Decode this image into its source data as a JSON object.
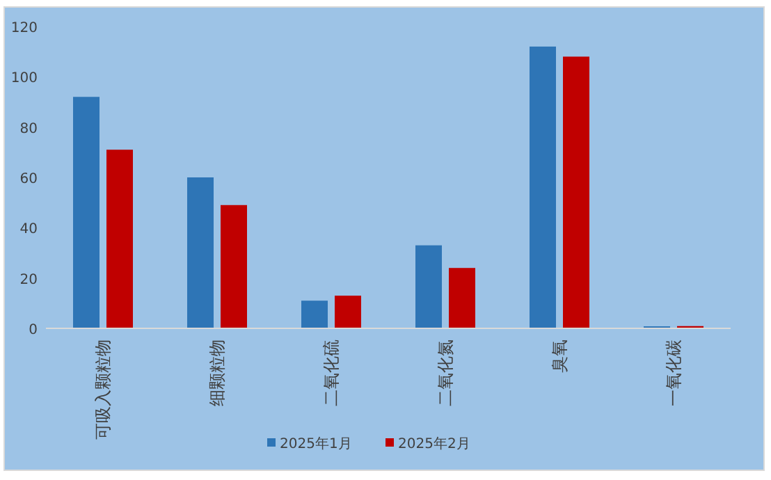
{
  "chart_data": {
    "type": "bar",
    "categories": [
      "可吸入颗粒物",
      "细颗粒物",
      "二氧化硫",
      "二氧化氮",
      "臭氧",
      "一氧化碳"
    ],
    "series": [
      {
        "name": "2025年1月",
        "color": "#2e75b6",
        "values": [
          92,
          60,
          11,
          33,
          112,
          0.8
        ]
      },
      {
        "name": "2025年2月",
        "color": "#c00000",
        "values": [
          71,
          49,
          13,
          24,
          108,
          0.9
        ]
      }
    ],
    "ylim": [
      0,
      120
    ],
    "yticks": [
      0,
      20,
      40,
      60,
      80,
      100,
      120
    ],
    "grid": false,
    "legend": "bottom"
  }
}
